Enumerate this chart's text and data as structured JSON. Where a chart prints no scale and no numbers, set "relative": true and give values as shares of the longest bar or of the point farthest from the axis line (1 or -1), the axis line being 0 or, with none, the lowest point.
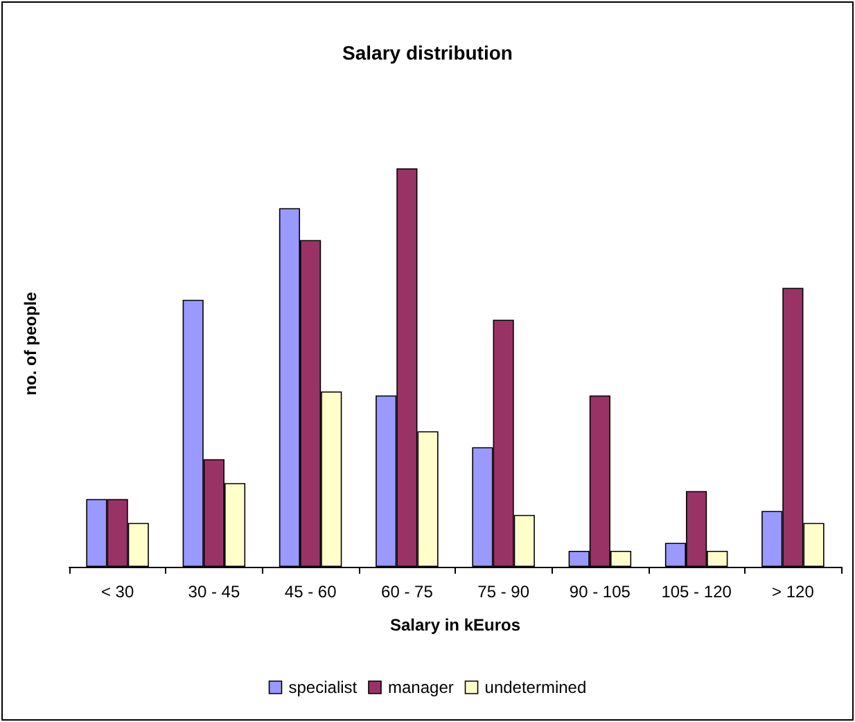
{
  "chart_data": {
    "type": "bar",
    "title": "Salary distribution",
    "xlabel": "Salary in kEuros",
    "ylabel": "no. of people",
    "relative": true,
    "categories": [
      "< 30",
      "30 - 45",
      "45 - 60",
      "60 - 75",
      "75 - 90",
      "90 - 105",
      "105 - 120",
      "> 120"
    ],
    "series": [
      {
        "name": "specialist",
        "color": "#9999ff",
        "values": [
          0.17,
          0.67,
          0.9,
          0.43,
          0.3,
          0.04,
          0.06,
          0.14
        ]
      },
      {
        "name": "manager",
        "color": "#993366",
        "values": [
          0.17,
          0.27,
          0.82,
          1,
          0.62,
          0.43,
          0.19,
          0.7
        ]
      },
      {
        "name": "undetermined",
        "color": "#ffffcc",
        "values": [
          0.11,
          0.21,
          0.44,
          0.34,
          0.13,
          0.04,
          0.04,
          0.11
        ]
      }
    ],
    "grid": false,
    "legend": "bottom"
  }
}
